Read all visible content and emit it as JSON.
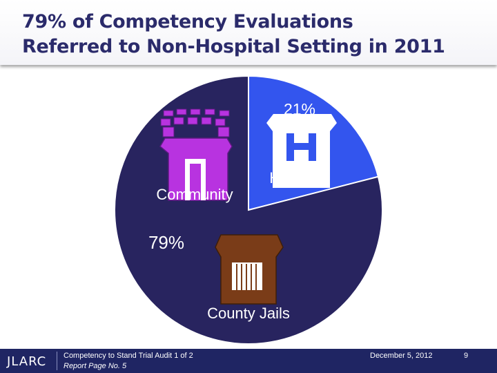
{
  "title": {
    "line1": "79% of Competency Evaluations",
    "line2": "Referred to Non-Hospital Setting in 2011"
  },
  "chart_data": {
    "type": "pie",
    "slices": [
      {
        "label": "Hospital",
        "value": 21,
        "value_label": "21%",
        "color": "#3355ee"
      },
      {
        "label": "Community",
        "value": 79,
        "value_label": "79%",
        "color": "#28245f"
      }
    ],
    "annotations": [
      "County Jails"
    ],
    "legend": "none"
  },
  "icons": [
    "community-building-icon",
    "hospital-icon",
    "jail-icon"
  ],
  "footer": {
    "logo": "JLARC",
    "line1": "Competency to Stand Trial Audit 1 of 2",
    "line2": "Report Page No. 5",
    "date": "December 5, 2012",
    "page": "9"
  }
}
